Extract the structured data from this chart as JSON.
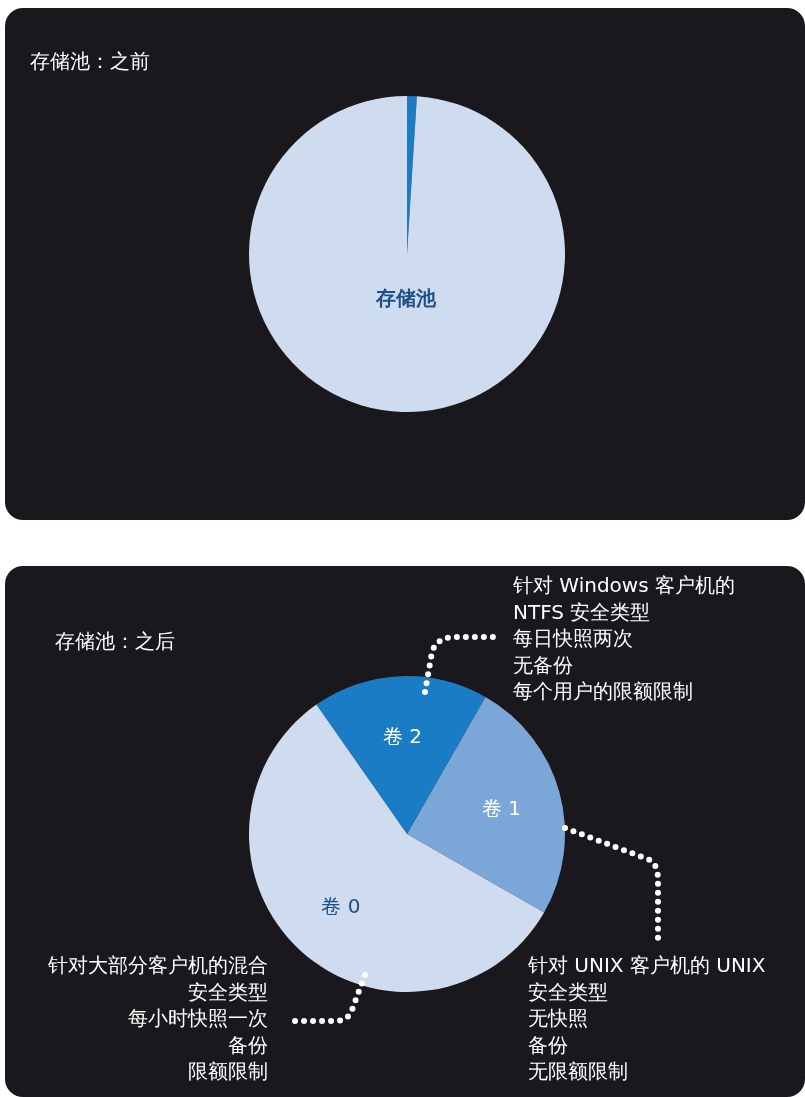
{
  "chart_data": [
    {
      "type": "pie",
      "title": "存储池：之前",
      "categories": [
        null,
        "存储池"
      ],
      "values": [
        1,
        99
      ],
      "colors": [
        "#1a7cc4",
        "#cfdcef"
      ]
    },
    {
      "type": "pie",
      "title": "存储池：之后",
      "categories": [
        "卷 2",
        "卷 1",
        "卷 0"
      ],
      "values": [
        18,
        25,
        57
      ],
      "colors": [
        "#1a7cc4",
        "#7ba7d8",
        "#cfdcef"
      ],
      "annotations": [
        "针对 Windows 客户机的",
        "NTFS 安全类型",
        "每日快照两次",
        "无备份",
        "每个用户的限额限制",
        "针对 UNIX 客户机的 UNIX",
        "安全类型",
        "无快照",
        "备份",
        "无限额限制",
        "针对大部分客户机的混合",
        "安全类型",
        "每小时快照一次",
        "备份",
        "限额限制"
      ]
    }
  ]
}
